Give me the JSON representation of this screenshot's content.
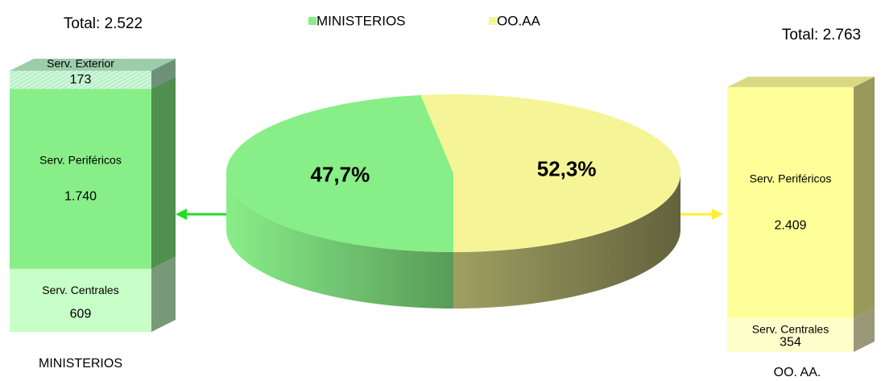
{
  "chart_data": [
    {
      "type": "pie",
      "categories": [
        "MINISTERIOS",
        "OO.AA"
      ],
      "values": [
        47.7,
        52.3
      ],
      "value_labels": [
        "47,7%",
        "52,3%"
      ],
      "colors": [
        "#88ee88",
        "#f5f598"
      ],
      "legend": "top"
    },
    {
      "type": "bar",
      "stacked": true,
      "title": "MINISTERIOS",
      "annotation": "Total: 2.522",
      "series": [
        {
          "name": "Serv. Centrales",
          "color": "#c8ffc8",
          "values": [
            609
          ]
        },
        {
          "name": "Serv. Periféricos",
          "color": "#88ee88",
          "values": [
            1740
          ],
          "value_labels": [
            "1.740"
          ]
        },
        {
          "name": "Serv. Exterior",
          "color": "#b8f0c8",
          "values": [
            173
          ],
          "hatch": true
        }
      ]
    },
    {
      "type": "bar",
      "stacked": true,
      "title": "OO. AA.",
      "annotation": "Total:  2.763",
      "series": [
        {
          "name": "Serv. Centrales",
          "color": "#ffffcc",
          "values": [
            354
          ]
        },
        {
          "name": "Serv. Periféricos",
          "color": "#ffff99",
          "values": [
            2409
          ],
          "value_labels": [
            "2.409"
          ]
        }
      ]
    }
  ]
}
